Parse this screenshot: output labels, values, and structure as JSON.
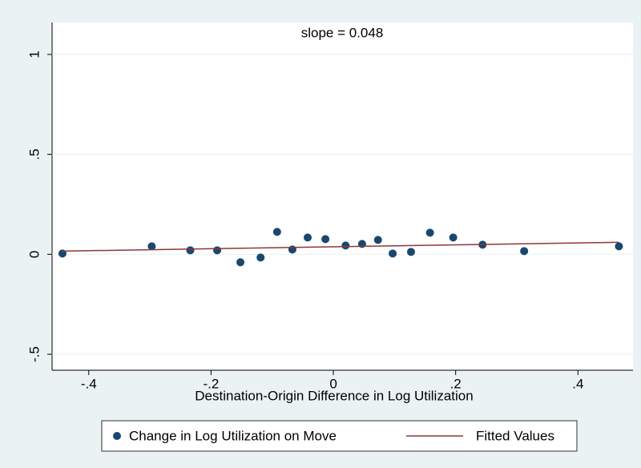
{
  "chart_data": {
    "type": "scatter",
    "title": "slope = 0.048",
    "x_label": "Destination-Origin Difference in Log Utilization",
    "series": [
      {
        "name": "Change in Log Utilization on Move",
        "type": "scatter",
        "color": "#1a476f",
        "x": [
          -0.443,
          -0.297,
          -0.234,
          -0.19,
          -0.152,
          -0.119,
          -0.092,
          -0.067,
          -0.042,
          -0.013,
          0.02,
          0.047,
          0.073,
          0.097,
          0.127,
          0.158,
          0.196,
          0.244,
          0.312,
          0.467
        ],
        "values": [
          0.004,
          0.04,
          0.02,
          0.02,
          -0.04,
          -0.016,
          0.112,
          0.024,
          0.084,
          0.076,
          0.044,
          0.052,
          0.072,
          0.004,
          0.012,
          0.108,
          0.084,
          0.048,
          0.016,
          0.04
        ]
      },
      {
        "name": "Fitted Values",
        "type": "line",
        "color": "#90353b",
        "x": [
          -0.443,
          0.467
        ],
        "values": [
          0.016,
          0.06
        ]
      }
    ],
    "xlim": [
      -0.46,
      0.49
    ],
    "ylim": [
      -0.58,
      1.16
    ],
    "xticks": [
      {
        "value": -0.4,
        "label": "-.4"
      },
      {
        "value": -0.2,
        "label": "-.2"
      },
      0,
      {
        "value": 0.2,
        "label": ".2"
      },
      {
        "value": 0.4,
        "label": ".4"
      }
    ],
    "yticks": [
      {
        "value": -0.5,
        "label": "-.5"
      },
      0,
      {
        "value": 0.5,
        "label": ".5"
      },
      1
    ],
    "grid": true
  }
}
